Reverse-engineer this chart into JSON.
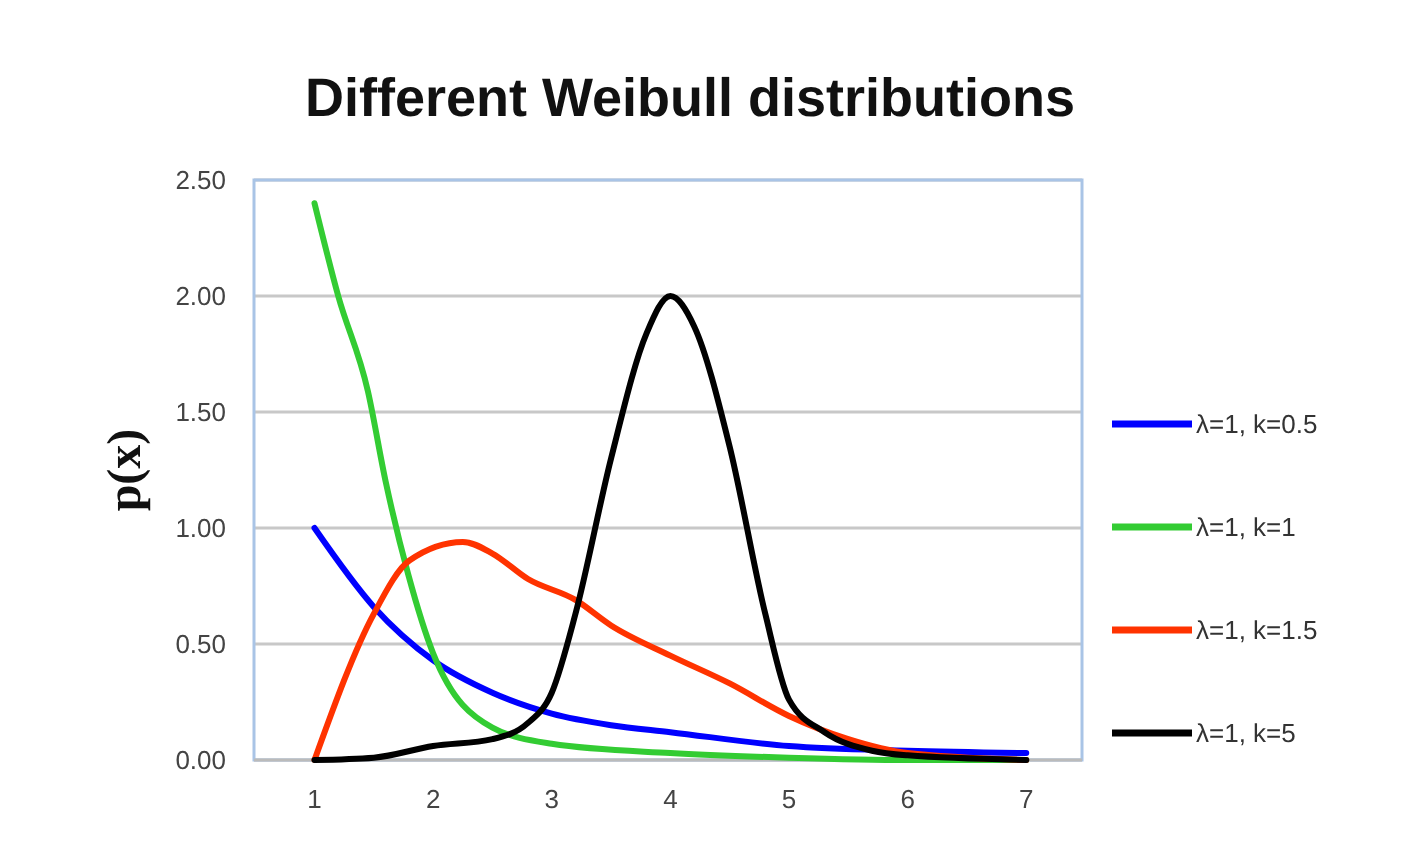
{
  "chart_data": {
    "type": "line",
    "title": "Different Weibull distributions",
    "ylabel": "p(x)",
    "xlim": [
      0.49,
      7.47
    ],
    "xticks": [
      1,
      2,
      3,
      4,
      5,
      6,
      7
    ],
    "ylim": [
      0,
      2.5
    ],
    "yticks": [
      {
        "value": 0,
        "label": "0.00"
      },
      {
        "value": 0.5,
        "label": "0.50"
      },
      {
        "value": 1,
        "label": "1.00"
      },
      {
        "value": 1.5,
        "label": "1.50"
      },
      {
        "value": 2,
        "label": "2.00"
      },
      {
        "value": 2.5,
        "label": "2.50"
      }
    ],
    "grid": "y",
    "legend": "right",
    "marker": "none",
    "line_style": "solid",
    "series": [
      {
        "name": "λ=1, k=0.5",
        "color": "#0000ff",
        "x": [
          1,
          1.5,
          2,
          2.5,
          3,
          3.5,
          4,
          5,
          6,
          7
        ],
        "values": [
          1.0,
          0.66,
          0.43,
          0.29,
          0.2,
          0.15,
          0.12,
          0.06,
          0.04,
          0.03
        ]
      },
      {
        "name": "λ=1, k=1",
        "color": "#33cc33",
        "x": [
          1,
          1.2,
          1.45,
          1.6,
          1.79,
          2,
          2.5,
          3,
          4,
          5,
          6,
          7
        ],
        "values": [
          2.4,
          2.0,
          1.59,
          1.2,
          0.8,
          0.46,
          0.14,
          0.07,
          0.03,
          0.01,
          0.0,
          0.0
        ]
      },
      {
        "name": "λ=1, k=1.5",
        "color": "#ff3300",
        "x": [
          1,
          1.5,
          1.8,
          2.25,
          2.5,
          2.8,
          3.2,
          3.5,
          4,
          4.5,
          5,
          5.5,
          6,
          7
        ],
        "values": [
          0,
          0.63,
          0.86,
          0.94,
          0.89,
          0.78,
          0.69,
          0.58,
          0.45,
          0.33,
          0.19,
          0.09,
          0.03,
          0
        ]
      },
      {
        "name": "λ=1, k=5",
        "color": "#000000",
        "x": [
          1,
          1.5,
          2,
          2.5,
          2.8,
          3,
          3.2,
          3.5,
          3.8,
          4,
          4.2,
          4.5,
          4.8,
          5,
          5.3,
          5.7,
          6,
          7
        ],
        "values": [
          0,
          0.01,
          0.06,
          0.09,
          0.16,
          0.29,
          0.63,
          1.3,
          1.84,
          2.0,
          1.87,
          1.35,
          0.63,
          0.26,
          0.12,
          0.04,
          0.02,
          0
        ]
      }
    ]
  }
}
